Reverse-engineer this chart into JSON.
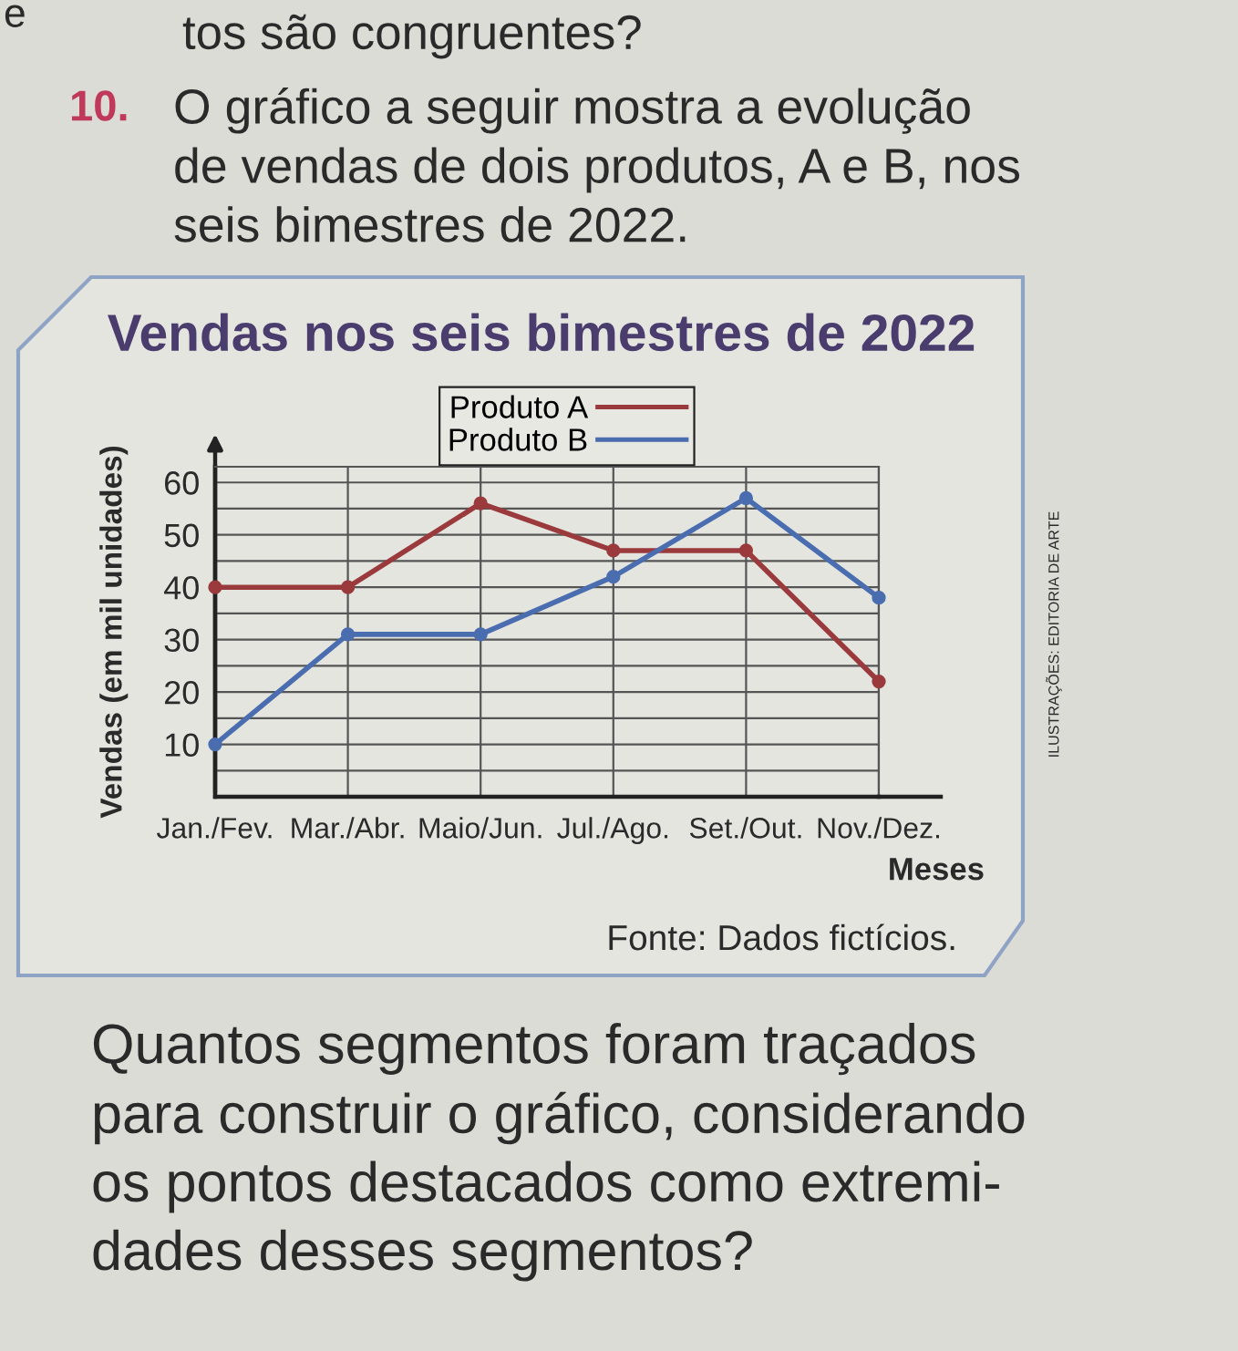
{
  "chart_data": {
    "type": "line",
    "title": "Vendas nos seis bimestres de 2022",
    "xlabel": "Meses",
    "ylabel": "Vendas (em mil unidades)",
    "categories": [
      "Jan./Fev.",
      "Mar./Abr.",
      "Maio/Jun.",
      "Jul./Ago.",
      "Set./Out.",
      "Nov./Dez."
    ],
    "series": [
      {
        "name": "Produto A",
        "color": "#9a3a3c",
        "values": [
          40,
          40,
          56,
          47,
          47,
          22
        ]
      },
      {
        "name": "Produto B",
        "color": "#4a6db0",
        "values": [
          10,
          31,
          31,
          42,
          57,
          38
        ]
      }
    ],
    "ylim": [
      0,
      63
    ],
    "yticks": [
      {
        "value": 5,
        "label": null
      },
      10,
      {
        "value": 15,
        "label": null
      },
      20,
      {
        "value": 25,
        "label": null
      },
      30,
      {
        "value": 35,
        "label": null
      },
      40,
      {
        "value": 45,
        "label": null
      },
      50,
      {
        "value": 55,
        "label": null
      },
      60
    ],
    "grid": true,
    "legend": "top",
    "marker": "circle",
    "line_style": "solid",
    "annotations": [
      "e",
      "tos são congruentes?",
      "10.",
      "O gráfico a seguir mostra a evolução\nde vendas de dois produtos, A e B, nos\nseis bimestres de 2022.",
      "Fonte: Dados fictícios.",
      "ILUSTRAÇÕES: EDITORIA DE ARTE",
      "Quantos segmentos foram traçados\npara construir o gráfico, considerando\nos pontos destacados como extremi-\ndades desses segmentos?"
    ]
  }
}
